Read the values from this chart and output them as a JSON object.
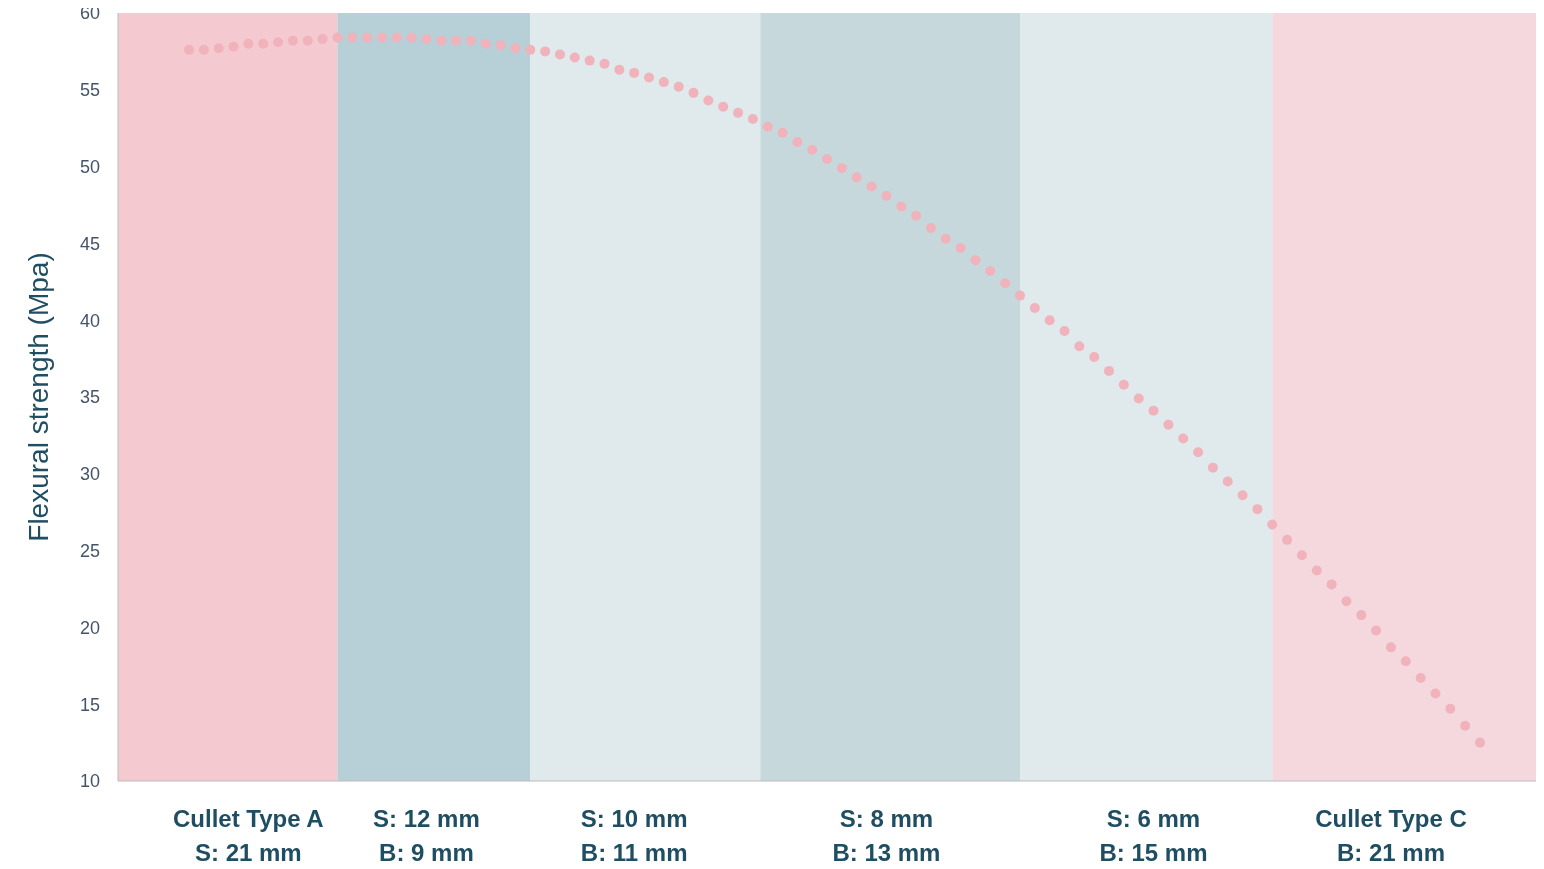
{
  "chart_data": {
    "type": "scatter",
    "ylabel": "Flexural strength (Mpa)",
    "ylim": [
      10,
      60
    ],
    "yticks": [
      10,
      15,
      20,
      25,
      30,
      35,
      40,
      45,
      50,
      55,
      60
    ],
    "marker": "circle",
    "categories": [
      null,
      null,
      null,
      null,
      "Cullet Type A\nS: 21 mm",
      null,
      null,
      null,
      null,
      null,
      null,
      null,
      null,
      null,
      null,
      null,
      "S: 12 mm\nB: 9 mm",
      null,
      null,
      null,
      null,
      null,
      null,
      null,
      null,
      null,
      null,
      null,
      null,
      null,
      "S: 10 mm\nB: 11 mm",
      null,
      null,
      null,
      null,
      null,
      null,
      null,
      null,
      null,
      null,
      null,
      null,
      null,
      null,
      null,
      null,
      "S: 8 mm\nB: 13 mm",
      null,
      null,
      null,
      null,
      null,
      null,
      null,
      null,
      null,
      null,
      null,
      null,
      null,
      null,
      null,
      null,
      null,
      "S: 6 mm\nB: 15 mm",
      null,
      null,
      null,
      null,
      null,
      null,
      null,
      null,
      null,
      null,
      null,
      null,
      null,
      null,
      null,
      "Cullet Type C\nB: 21 mm",
      null,
      null,
      null,
      null,
      null,
      null
    ],
    "series": [
      {
        "color": "#f0b3bb",
        "values": [
          57.6,
          57.6,
          57.7,
          57.8,
          58.0,
          58.0,
          58.1,
          58.2,
          58.2,
          58.3,
          58.4,
          58.4,
          58.4,
          58.4,
          58.4,
          58.4,
          58.3,
          58.2,
          58.2,
          58.2,
          58.0,
          57.9,
          57.7,
          57.6,
          57.5,
          57.3,
          57.1,
          56.9,
          56.7,
          56.3,
          56.1,
          55.8,
          55.5,
          55.2,
          54.8,
          54.3,
          53.9,
          53.5,
          53.1,
          52.6,
          52.2,
          51.6,
          51.1,
          50.5,
          49.9,
          49.3,
          48.7,
          48.1,
          47.4,
          46.8,
          46.0,
          45.3,
          44.7,
          43.9,
          43.2,
          42.4,
          41.6,
          40.8,
          40.0,
          39.3,
          38.3,
          37.6,
          36.7,
          35.8,
          34.9,
          34.1,
          33.2,
          32.3,
          31.4,
          30.4,
          29.5,
          28.6,
          27.7,
          26.7,
          25.7,
          24.7,
          23.7,
          22.8,
          21.7,
          20.8,
          19.8,
          18.7,
          17.8,
          16.7,
          15.7,
          14.7,
          13.6,
          12.5
        ]
      }
    ]
  }
}
